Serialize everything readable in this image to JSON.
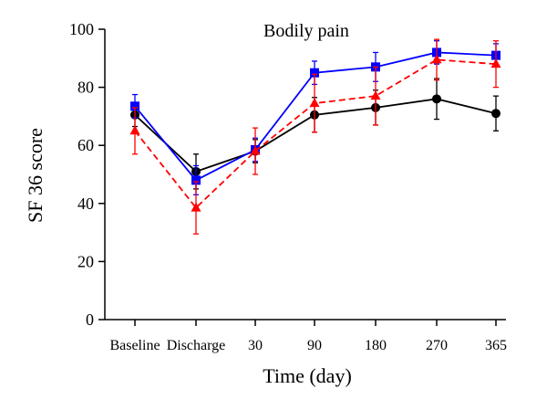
{
  "chart_data": {
    "type": "line",
    "title": "Bodily pain",
    "xlabel": "Time (day)",
    "ylabel": "SF 36 score",
    "ylim": [
      0,
      100
    ],
    "yticks": [
      0,
      20,
      40,
      60,
      80,
      100
    ],
    "categories": [
      "Baseline",
      "Discharge",
      "30",
      "90",
      "180",
      "270",
      "365"
    ],
    "grid": false,
    "legend": "none",
    "series": [
      {
        "color": "#000000",
        "marker": "circle",
        "line_style": "solid",
        "values": [
          70.5,
          51,
          58,
          70.5,
          73,
          76,
          71
        ],
        "error": [
          4,
          6,
          4,
          6,
          6,
          7,
          6
        ]
      },
      {
        "color": "#0000ff",
        "marker": "square",
        "line_style": "solid",
        "values": [
          73.5,
          48,
          58.5,
          85,
          87,
          92,
          91
        ],
        "error": [
          4,
          5,
          4,
          4,
          5,
          4,
          4
        ]
      },
      {
        "color": "#ff0000",
        "marker": "triangle",
        "line_style": "dashed",
        "values": [
          65,
          38.5,
          58,
          74.5,
          77,
          89.5,
          88
        ],
        "error": [
          8,
          9,
          8,
          10,
          10,
          7,
          8
        ]
      }
    ]
  }
}
